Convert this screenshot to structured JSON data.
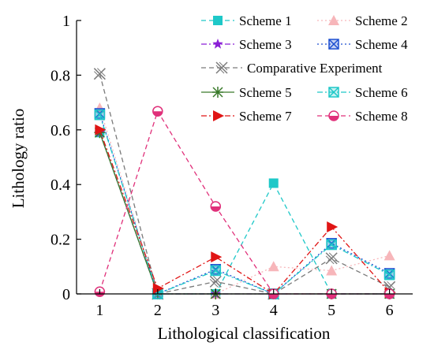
{
  "chart_data": {
    "type": "line",
    "title": "",
    "xlabel": "Lithological classification",
    "ylabel": "Lithology ratio",
    "x": [
      1,
      2,
      3,
      4,
      5,
      6
    ],
    "xlim": [
      0.6,
      6.4
    ],
    "ylim": [
      0,
      1
    ],
    "yticks": [
      "0",
      "0.2",
      "0.4",
      "0.6",
      "0.8",
      "1"
    ],
    "grid": false,
    "legend_position": "top-right",
    "series": [
      {
        "name": "Scheme 1",
        "color": "#1ec8c8",
        "dash": "dashed",
        "marker": "square",
        "values": [
          0.59,
          0.0,
          0.0,
          0.405,
          0.0,
          0.0
        ]
      },
      {
        "name": "Scheme 2",
        "color": "#f7b6ba",
        "dash": "dotted",
        "marker": "triangle",
        "values": [
          0.68,
          0.0,
          0.0,
          0.1,
          0.085,
          0.14
        ]
      },
      {
        "name": "Scheme 3",
        "color": "#8b1fd6",
        "dash": "dashdot",
        "marker": "star",
        "values": [
          0.59,
          0.0,
          0.0,
          0.0,
          0.0,
          0.0
        ]
      },
      {
        "name": "Scheme 4",
        "color": "#1d4fd1",
        "dash": "dotted",
        "marker": "boxx",
        "values": [
          0.66,
          0.0,
          0.09,
          0.0,
          0.185,
          0.075
        ]
      },
      {
        "name": "Comparative Experiment",
        "color": "#7a7a7a",
        "dash": "dashed",
        "marker": "xx",
        "values": [
          0.805,
          0.0,
          0.045,
          0.0,
          0.13,
          0.025
        ]
      },
      {
        "name": "Scheme 5",
        "color": "#3a7a2a",
        "dash": "solid",
        "marker": "asterisk",
        "values": [
          0.59,
          0.0,
          0.0,
          0.0,
          0.0,
          0.0
        ]
      },
      {
        "name": "Scheme 6",
        "color": "#1ec8c8",
        "dash": "dashdot",
        "marker": "boxx",
        "values": [
          0.655,
          0.0,
          0.085,
          0.0,
          0.18,
          0.07
        ]
      },
      {
        "name": "Scheme 7",
        "color": "#e01515",
        "dash": "dashdot",
        "marker": "triangle-right",
        "values": [
          0.6,
          0.02,
          0.135,
          0.0,
          0.245,
          0.005
        ]
      },
      {
        "name": "Scheme 8",
        "color": "#e0307a",
        "dash": "dashed",
        "marker": "circle-half",
        "values": [
          0.008,
          0.668,
          0.32,
          0.0,
          0.0,
          0.0
        ]
      }
    ]
  }
}
